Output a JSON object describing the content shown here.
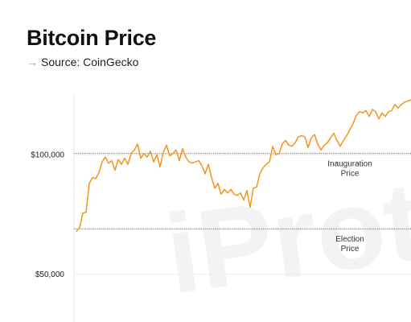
{
  "header": {
    "title": "Bitcoin Price",
    "source_arrow": "→",
    "source_text": "Source: CoinGecko"
  },
  "watermark": "iProto",
  "colors": {
    "line": "#f7931a",
    "arrow": "#f7931a",
    "reference": "#444444",
    "text": "#111111"
  },
  "chart_data": {
    "type": "line",
    "title": "Bitcoin Price",
    "xlabel": "",
    "ylabel": "",
    "ylim": [
      30000,
      125000
    ],
    "yticks": [
      {
        "value": 50000,
        "label": "$50,000"
      },
      {
        "value": 100000,
        "label": "$100,000"
      }
    ],
    "grid": false,
    "x": [
      0,
      2,
      4,
      6,
      8,
      10,
      12,
      14,
      16,
      18,
      20,
      22,
      24,
      26,
      28,
      30,
      32,
      34,
      36,
      38,
      40,
      42,
      44,
      46,
      48,
      50,
      52,
      54,
      56,
      58,
      60,
      62,
      64,
      66,
      68,
      70,
      72,
      74,
      76,
      78,
      80,
      82,
      84,
      86,
      88,
      90,
      92,
      94,
      96,
      98,
      100,
      102,
      104,
      106,
      108,
      110,
      112,
      114,
      116,
      118,
      120,
      122,
      124,
      126,
      128,
      130,
      132,
      134,
      136,
      138,
      140,
      142,
      144,
      146,
      148,
      150,
      152,
      154,
      156,
      158,
      160,
      162,
      164,
      166,
      168,
      170,
      172,
      174,
      176,
      178,
      180,
      182,
      184,
      186,
      188,
      190,
      192,
      194,
      196,
      198,
      200,
      202,
      204,
      206,
      208
    ],
    "series": [
      {
        "values": [
          68000,
          69500,
          75500,
          76000,
          88000,
          90500,
          90000,
          92500,
          97000,
          99000,
          96500,
          97500,
          93500,
          98000,
          96000,
          98500,
          96000,
          100500,
          102000,
          104500,
          98500,
          100500,
          99000,
          101500,
          97000,
          100000,
          95000,
          101000,
          104000,
          99500,
          100500,
          102000,
          97500,
          102500,
          99000,
          97000,
          96500,
          97000,
          97500,
          95500,
          92000,
          96000,
          90500,
          86000,
          88000,
          83500,
          85500,
          84000,
          85500,
          83500,
          83000,
          84000,
          81000,
          85000,
          78000,
          86000,
          86500,
          92000,
          94500,
          96000,
          97000,
          103500,
          100000,
          100500,
          104500,
          106000,
          104000,
          103500,
          105000,
          107500,
          108000,
          107500,
          103000,
          107000,
          108500,
          104500,
          102000,
          104000,
          105000,
          107000,
          109000,
          106000,
          103500,
          106000,
          108000,
          110500,
          113000,
          116500,
          118000,
          117500,
          118500,
          116000,
          119000,
          118000,
          115000,
          117500,
          116000,
          118000,
          118500,
          121000,
          119500,
          121000,
          122000,
          122500,
          123000
        ]
      }
    ],
    "reference_lines": [
      {
        "value": 100500,
        "label_line1": "Inauguration",
        "label_line2": "Price"
      },
      {
        "value": 69000,
        "label_line1": "Election",
        "label_line2": "Price"
      }
    ]
  }
}
